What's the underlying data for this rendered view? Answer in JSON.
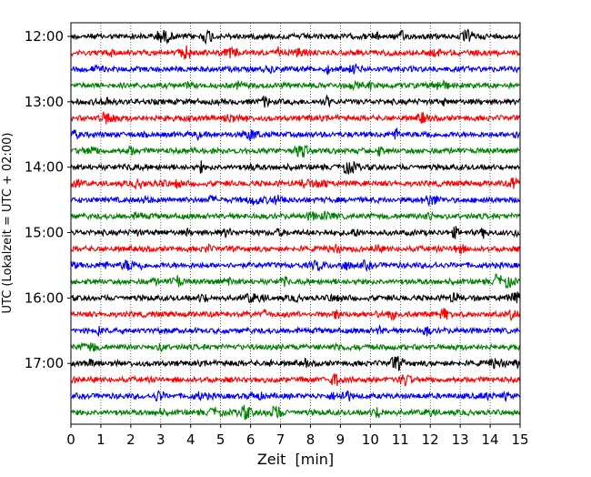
{
  "chart_data": {
    "type": "line",
    "title": "",
    "xlabel": "Zeit  [min]",
    "ylabel": "UTC (Lokalzeit = UTC + 02:00)",
    "xlim": [
      0,
      15
    ],
    "x_ticks": [
      "0",
      "1",
      "2",
      "3",
      "4",
      "5",
      "6",
      "7",
      "8",
      "9",
      "10",
      "11",
      "12",
      "13",
      "14",
      "15"
    ],
    "y_tick_labels": [
      "12:00",
      "13:00",
      "14:00",
      "15:00",
      "16:00",
      "17:00"
    ],
    "grid": "vertical dotted lines at each minute",
    "legend": "none",
    "trace_colors": [
      "#000000",
      "#ff0000",
      "#0000ff",
      "#008000"
    ],
    "traces": [
      {
        "start": "12:00"
      },
      {
        "start": "12:15"
      },
      {
        "start": "12:30"
      },
      {
        "start": "12:45"
      },
      {
        "start": "13:00"
      },
      {
        "start": "13:15"
      },
      {
        "start": "13:30"
      },
      {
        "start": "13:45"
      },
      {
        "start": "14:00"
      },
      {
        "start": "14:15"
      },
      {
        "start": "14:30"
      },
      {
        "start": "14:45"
      },
      {
        "start": "15:00"
      },
      {
        "start": "15:15"
      },
      {
        "start": "15:30"
      },
      {
        "start": "15:45"
      },
      {
        "start": "16:00"
      },
      {
        "start": "16:15"
      },
      {
        "start": "16:30"
      },
      {
        "start": "16:45"
      },
      {
        "start": "17:00"
      },
      {
        "start": "17:15"
      },
      {
        "start": "17:30"
      },
      {
        "start": "17:45"
      }
    ]
  }
}
